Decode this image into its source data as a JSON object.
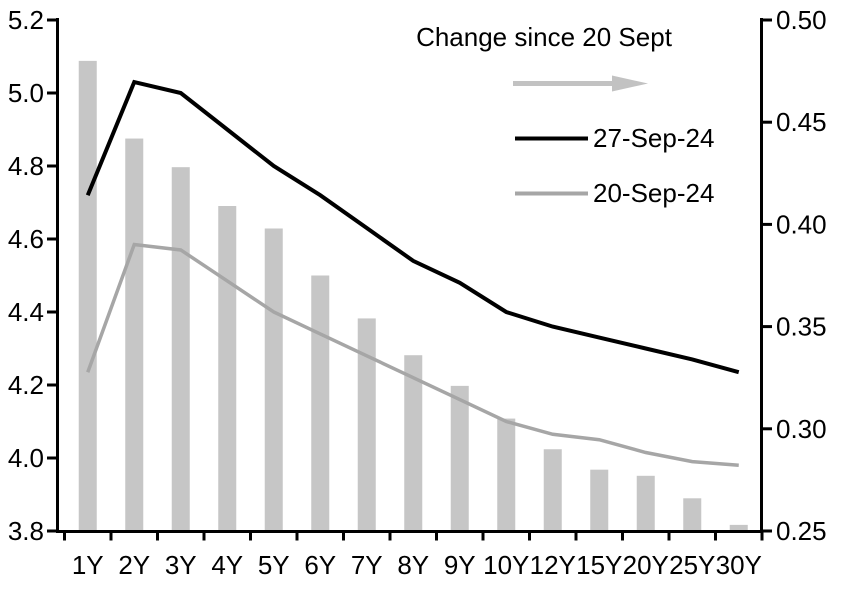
{
  "chart_data": {
    "type": "combo",
    "subtypes": [
      "bar",
      "line",
      "line"
    ],
    "title": "",
    "grid": false,
    "legend_position": "top-right",
    "categories": [
      "1Y",
      "2Y",
      "3Y",
      "4Y",
      "5Y",
      "6Y",
      "7Y",
      "8Y",
      "9Y",
      "10Y",
      "12Y",
      "15Y",
      "20Y",
      "25Y",
      "30Y"
    ],
    "left_axis": {
      "min": 3.8,
      "max": 5.2,
      "tick_labels": [
        "5.2",
        "5.0",
        "4.8",
        "4.6",
        "4.4",
        "4.2",
        "4.0",
        "3.8"
      ]
    },
    "right_axis": {
      "min": 0.25,
      "max": 0.5,
      "tick_labels": [
        "0.50",
        "0.45",
        "0.40",
        "0.35",
        "0.30",
        "0.25"
      ]
    },
    "bars": {
      "name": "Change since 20 Sept",
      "axis": "right",
      "color": "#c6c6c6",
      "values": [
        0.48,
        0.442,
        0.428,
        0.409,
        0.398,
        0.375,
        0.354,
        0.336,
        0.321,
        0.305,
        0.29,
        0.28,
        0.277,
        0.266,
        0.253
      ]
    },
    "series": [
      {
        "name": "27-Sep-24",
        "axis": "left",
        "color": "#000000",
        "width": 4,
        "values": [
          4.72,
          5.03,
          5.0,
          4.9,
          4.8,
          4.72,
          4.63,
          4.54,
          4.48,
          4.4,
          4.36,
          4.33,
          4.3,
          4.27,
          4.235
        ]
      },
      {
        "name": "20-Sep-24",
        "axis": "left",
        "color": "#a6a6a6",
        "width": 3.5,
        "values": [
          4.235,
          4.585,
          4.57,
          4.485,
          4.4,
          4.34,
          4.28,
          4.22,
          4.16,
          4.1,
          4.065,
          4.05,
          4.015,
          3.99,
          3.98
        ]
      }
    ]
  },
  "legend": {
    "title": "Change since 20 Sept",
    "arrow_color": "#c2c2c2"
  }
}
